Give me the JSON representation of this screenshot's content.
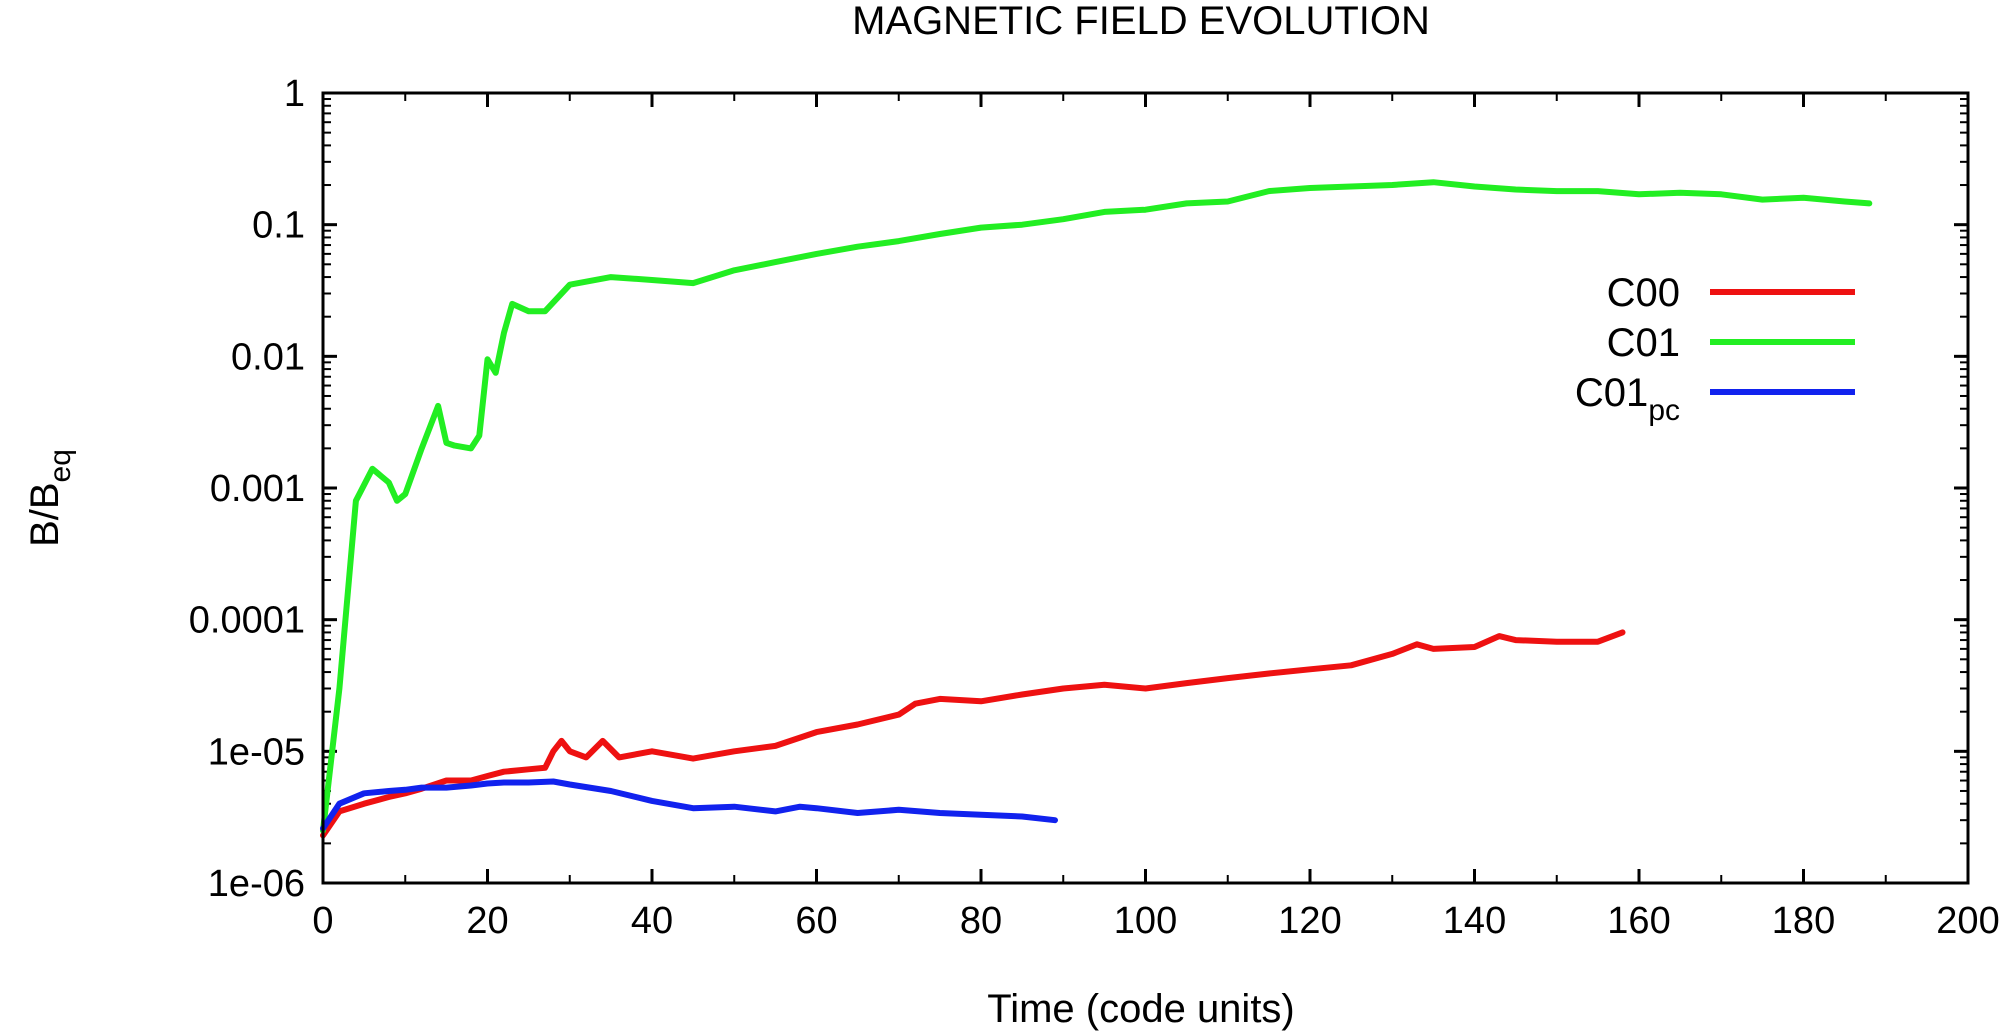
{
  "chart_data": {
    "type": "line",
    "title": "MAGNETIC FIELD EVOLUTION",
    "xlabel": "Time (code units)",
    "ylabel": {
      "main": "B/B",
      "sub": "eq"
    },
    "xlim": [
      0,
      200
    ],
    "ylim": [
      1e-06,
      1
    ],
    "yscale": "log",
    "grid": false,
    "legend_position": "top-right",
    "xticks": [
      0,
      20,
      40,
      60,
      80,
      100,
      120,
      140,
      160,
      180,
      200
    ],
    "xtick_labels": [
      "0",
      "20",
      "40",
      "60",
      "80",
      "100",
      "120",
      "140",
      "160",
      "180",
      "200"
    ],
    "yticks": [
      1e-06,
      1e-05,
      0.0001,
      0.001,
      0.01,
      0.1,
      1
    ],
    "ytick_labels": [
      "1e-06",
      "1e-05",
      "0.0001",
      "0.001",
      "0.01",
      "0.1",
      "1"
    ],
    "series": [
      {
        "name": "C00",
        "color": "#ee1111",
        "x": [
          0,
          2,
          5,
          8,
          10,
          12,
          15,
          18,
          20,
          22,
          25,
          27,
          28,
          29,
          30,
          32,
          34,
          36,
          40,
          45,
          50,
          55,
          60,
          65,
          70,
          72,
          75,
          80,
          85,
          90,
          95,
          100,
          105,
          110,
          115,
          120,
          125,
          130,
          133,
          135,
          140,
          143,
          145,
          150,
          155,
          158
        ],
        "y": [
          2.3e-06,
          3.5e-06,
          4e-06,
          4.5e-06,
          4.8e-06,
          5.2e-06,
          6e-06,
          6e-06,
          6.5e-06,
          7e-06,
          7.3e-06,
          7.5e-06,
          1e-05,
          1.2e-05,
          1e-05,
          9e-06,
          1.2e-05,
          9e-06,
          1e-05,
          8.8e-06,
          1e-05,
          1.1e-05,
          1.4e-05,
          1.6e-05,
          1.9e-05,
          2.3e-05,
          2.5e-05,
          2.4e-05,
          2.7e-05,
          3e-05,
          3.2e-05,
          3e-05,
          3.3e-05,
          3.6e-05,
          3.9e-05,
          4.2e-05,
          4.5e-05,
          5.5e-05,
          6.5e-05,
          6e-05,
          6.2e-05,
          7.5e-05,
          7e-05,
          6.8e-05,
          6.8e-05,
          8e-05
        ]
      },
      {
        "name": "C01",
        "color": "#22ee22",
        "x": [
          0,
          2,
          4,
          6,
          8,
          9,
          10,
          12,
          14,
          15,
          16,
          18,
          19,
          20,
          21,
          22,
          23,
          25,
          27,
          30,
          35,
          40,
          45,
          50,
          55,
          60,
          65,
          70,
          75,
          80,
          85,
          90,
          95,
          100,
          105,
          110,
          115,
          120,
          125,
          130,
          135,
          140,
          145,
          150,
          155,
          160,
          165,
          170,
          175,
          180,
          185,
          188
        ],
        "y": [
          2.5e-06,
          3e-05,
          0.0008,
          0.0014,
          0.0011,
          0.0008,
          0.0009,
          0.002,
          0.0042,
          0.0022,
          0.0021,
          0.002,
          0.0025,
          0.0095,
          0.0075,
          0.015,
          0.025,
          0.022,
          0.022,
          0.035,
          0.04,
          0.038,
          0.036,
          0.045,
          0.052,
          0.06,
          0.068,
          0.075,
          0.085,
          0.095,
          0.1,
          0.11,
          0.125,
          0.13,
          0.145,
          0.15,
          0.18,
          0.19,
          0.195,
          0.2,
          0.21,
          0.195,
          0.185,
          0.18,
          0.18,
          0.17,
          0.175,
          0.17,
          0.155,
          0.16,
          0.15,
          0.145
        ]
      },
      {
        "name": "C01",
        "name_subscript": "pc",
        "color": "#1122ee",
        "x": [
          0,
          2,
          5,
          8,
          10,
          12,
          15,
          18,
          20,
          22,
          25,
          28,
          30,
          35,
          40,
          45,
          50,
          55,
          58,
          60,
          65,
          70,
          75,
          80,
          85,
          89
        ],
        "y": [
          2.6e-06,
          4e-06,
          4.8e-06,
          5e-06,
          5.1e-06,
          5.3e-06,
          5.3e-06,
          5.5e-06,
          5.7e-06,
          5.8e-06,
          5.8e-06,
          5.9e-06,
          5.6e-06,
          5e-06,
          4.2e-06,
          3.7e-06,
          3.8e-06,
          3.5e-06,
          3.8e-06,
          3.7e-06,
          3.4e-06,
          3.6e-06,
          3.4e-06,
          3.3e-06,
          3.2e-06,
          3e-06
        ]
      }
    ]
  }
}
